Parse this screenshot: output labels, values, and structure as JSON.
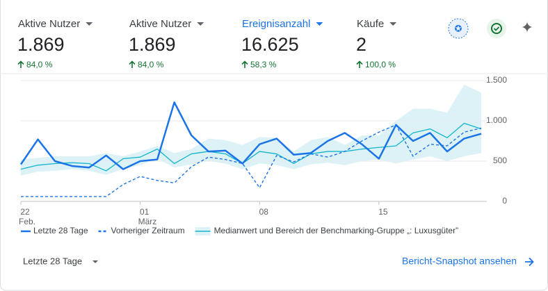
{
  "metrics": [
    {
      "label": "Aktive Nutzer",
      "value": "1.869",
      "change": "84,0 %"
    },
    {
      "label": "Aktive Nutzer",
      "value": "1.869",
      "change": "84,0 %"
    },
    {
      "label": "Ereignisanzahl",
      "value": "16.625",
      "change": "58,3 %"
    },
    {
      "label": "Käufe",
      "value": "2",
      "change": "100,0 %"
    }
  ],
  "chart_data": {
    "type": "line",
    "categories": [
      "22",
      null,
      null,
      null,
      null,
      null,
      null,
      "01",
      null,
      null,
      null,
      null,
      null,
      null,
      "08",
      null,
      null,
      null,
      null,
      null,
      null,
      "15",
      null,
      null,
      null,
      null,
      null,
      null
    ],
    "category_months": [
      "Feb.",
      null,
      null,
      null,
      null,
      null,
      null,
      "März",
      null,
      null,
      null,
      null,
      null,
      null,
      null,
      null,
      null,
      null,
      null,
      null,
      null,
      null,
      null,
      null,
      null,
      null,
      null,
      null
    ],
    "series": [
      {
        "name": "Letzte 28 Tage",
        "color": "#1a73e8",
        "style": "solid",
        "values": [
          460,
          770,
          500,
          440,
          420,
          570,
          400,
          500,
          520,
          1230,
          820,
          620,
          630,
          470,
          710,
          780,
          580,
          600,
          750,
          850,
          710,
          530,
          950,
          750,
          850,
          620,
          780,
          840
        ]
      },
      {
        "name": "Vorheriger Zeitraum",
        "color": "#1a73e8",
        "style": "dashed",
        "values": [
          60,
          60,
          60,
          60,
          60,
          60,
          210,
          310,
          260,
          230,
          430,
          550,
          520,
          470,
          170,
          570,
          490,
          590,
          550,
          620,
          750,
          860,
          950,
          560,
          710,
          690,
          860,
          910
        ]
      },
      {
        "name": "Medianwert und Bereich der Benchmarking-Gruppe „: Luxusgüter”",
        "color": "#12b5cb",
        "style": "solid",
        "band_color": "#dcf2f6",
        "values": [
          400,
          450,
          470,
          480,
          470,
          380,
          530,
          550,
          650,
          470,
          590,
          620,
          590,
          470,
          620,
          590,
          470,
          590,
          620,
          620,
          650,
          670,
          690,
          850,
          900,
          790,
          970,
          900
        ],
        "upper": [
          520,
          540,
          560,
          560,
          560,
          600,
          560,
          620,
          690,
          600,
          650,
          780,
          760,
          700,
          800,
          790,
          620,
          760,
          800,
          700,
          820,
          820,
          1000,
          1150,
          1150,
          1100,
          1450,
          1350
        ],
        "lower": [
          320,
          370,
          380,
          400,
          380,
          330,
          400,
          450,
          530,
          420,
          460,
          500,
          470,
          400,
          470,
          450,
          400,
          460,
          480,
          450,
          500,
          520,
          470,
          520,
          560,
          500,
          560,
          600
        ]
      }
    ],
    "ylim": [
      0,
      1500
    ],
    "yticks": [
      0,
      500,
      {
        "value": 1000,
        "label": "1.000"
      },
      {
        "value": 1500,
        "label": "1.500"
      }
    ],
    "grid": true
  },
  "footer": {
    "range": "Letzte 28 Tage",
    "link": "Bericht-Snapshot ansehen"
  }
}
